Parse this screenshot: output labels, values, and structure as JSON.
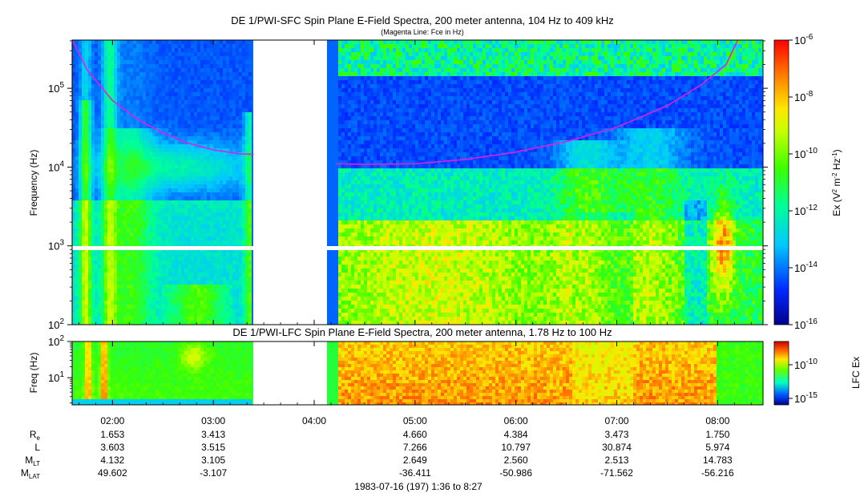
{
  "chart_data": [
    {
      "type": "heatmap",
      "title": "DE 1/PWI-SFC  Spin Plane E-Field Spectra, 200 meter antenna, 104 Hz to 409 kHz",
      "subtitle": "(Magenta Line: Fce in Hz)",
      "ylabel": "Frequency (Hz)",
      "yscale": "log",
      "ylim": [
        100,
        409000
      ],
      "yticks": [
        {
          "value": 100,
          "base": "10",
          "exp": "2"
        },
        {
          "value": 1000,
          "base": "10",
          "exp": "3"
        },
        {
          "value": 10000,
          "base": "10",
          "exp": "4"
        },
        {
          "value": 100000,
          "base": "10",
          "exp": "5"
        }
      ],
      "colorbar": {
        "label_parts": {
          "a": "Ex (V",
          "b": "2",
          "c": " m",
          "d": "-2",
          "e": " Hz",
          "f": "-1",
          "g": ")"
        },
        "scale": "log",
        "range": [
          1e-16,
          1e-06
        ],
        "ticks": [
          {
            "base": "10",
            "exp": "-6"
          },
          {
            "base": "10",
            "exp": "-8"
          },
          {
            "base": "10",
            "exp": "-10"
          },
          {
            "base": "10",
            "exp": "-12"
          },
          {
            "base": "10",
            "exp": "-14"
          },
          {
            "base": "10",
            "exp": "-16"
          }
        ]
      },
      "data_gap": {
        "start": "03:24",
        "end": "04:13"
      },
      "fce_line": {
        "color": "#e020e0",
        "points": [
          {
            "t": "01:36",
            "f": 409000
          },
          {
            "t": "01:45",
            "f": 170000
          },
          {
            "t": "02:00",
            "f": 70000
          },
          {
            "t": "02:15",
            "f": 40000
          },
          {
            "t": "02:30",
            "f": 27000
          },
          {
            "t": "02:45",
            "f": 20000
          },
          {
            "t": "03:00",
            "f": 16500
          },
          {
            "t": "03:15",
            "f": 14800
          },
          {
            "t": "03:24",
            "f": 14500
          },
          {
            "t": "04:13",
            "f": 11000
          },
          {
            "t": "04:30",
            "f": 10800
          },
          {
            "t": "05:00",
            "f": 11000
          },
          {
            "t": "05:30",
            "f": 12500
          },
          {
            "t": "06:00",
            "f": 15500
          },
          {
            "t": "06:30",
            "f": 21000
          },
          {
            "t": "07:00",
            "f": 32000
          },
          {
            "t": "07:30",
            "f": 60000
          },
          {
            "t": "07:50",
            "f": 110000
          },
          {
            "t": "08:05",
            "f": 200000
          },
          {
            "t": "08:12",
            "f": 409000
          }
        ]
      }
    },
    {
      "type": "heatmap",
      "title": "DE 1/PWI-LFC  Spin Plane E-Field Spectra, 200 meter antenna, 1.78 Hz to 100 Hz",
      "ylabel": "Freq (Hz)",
      "yscale": "log",
      "ylim": [
        1.78,
        100
      ],
      "yticks": [
        {
          "value": 10,
          "base": "10",
          "exp": "1"
        },
        {
          "value": 100,
          "base": "10",
          "exp": "2"
        }
      ],
      "colorbar": {
        "label": "LFC Ex",
        "scale": "log",
        "ticks": [
          {
            "base": "10",
            "exp": "-10"
          },
          {
            "base": "10",
            "exp": "-15"
          }
        ]
      },
      "data_gap": {
        "start": "03:24",
        "end": "04:13"
      }
    }
  ],
  "time_axis": {
    "start": "01:36",
    "end": "08:27",
    "ticks": [
      "02:00",
      "03:00",
      "04:00",
      "05:00",
      "06:00",
      "07:00",
      "08:00"
    ]
  },
  "ephemeris": {
    "rows": [
      {
        "label": "R",
        "sub": "e",
        "values": [
          "1.653",
          "3.413",
          "",
          "4.660",
          "4.384",
          "3.473",
          "1.750"
        ]
      },
      {
        "label": "L",
        "sub": "",
        "values": [
          "3.603",
          "3.515",
          "",
          "7.266",
          "10.797",
          "30.874",
          "5.974"
        ]
      },
      {
        "label": "M",
        "sub": "LT",
        "values": [
          "4.132",
          "3.105",
          "",
          "2.649",
          "2.560",
          "2.513",
          "14.783"
        ]
      },
      {
        "label": "M",
        "sub": "LAT",
        "values": [
          "49.602",
          "-3.107",
          "",
          "-36.411",
          "-50.986",
          "-71.562",
          "-56.216"
        ]
      }
    ]
  },
  "footer": "1983-07-16 (197) 1:36 to 8:27"
}
